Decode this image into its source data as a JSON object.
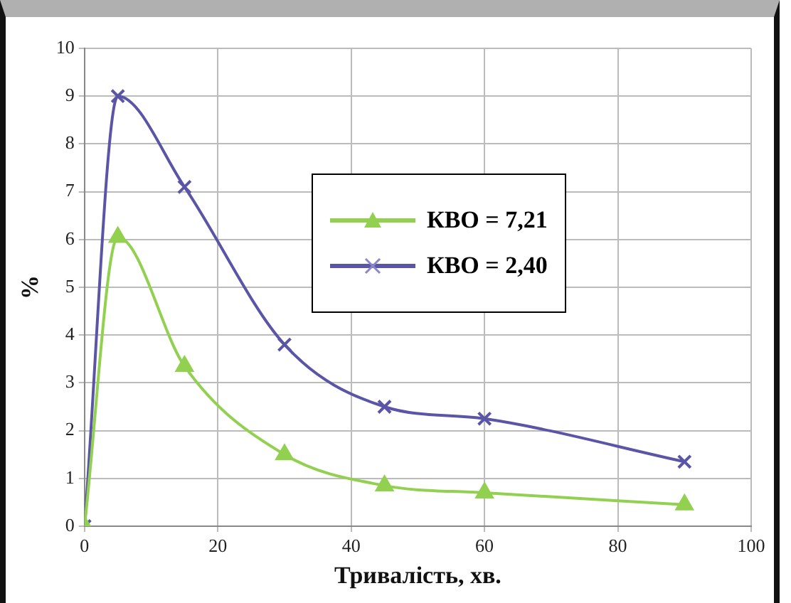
{
  "chart_data": {
    "type": "line",
    "xlabel": "Тривалість, хв.",
    "ylabel": "%",
    "x": [
      0,
      5,
      15,
      30,
      45,
      60,
      90
    ],
    "series": [
      {
        "name": "КВО = 7,21",
        "color": "#92d050",
        "marker": "triangle",
        "values": [
          0,
          6.05,
          3.35,
          1.5,
          0.85,
          0.7,
          0.45
        ]
      },
      {
        "name": "КВО = 2,40",
        "color": "#5b55a8",
        "marker": "cross",
        "values": [
          0,
          9.0,
          7.1,
          3.8,
          2.5,
          2.25,
          1.35
        ]
      }
    ],
    "xlim": [
      0,
      100
    ],
    "xticks": [
      0,
      20,
      40,
      60,
      80,
      100
    ],
    "ylim": [
      0,
      10
    ],
    "yticks": [
      0,
      1,
      2,
      3,
      4,
      5,
      6,
      7,
      8,
      9,
      10
    ],
    "grid": true,
    "legend": "right",
    "line_style": "solid"
  }
}
